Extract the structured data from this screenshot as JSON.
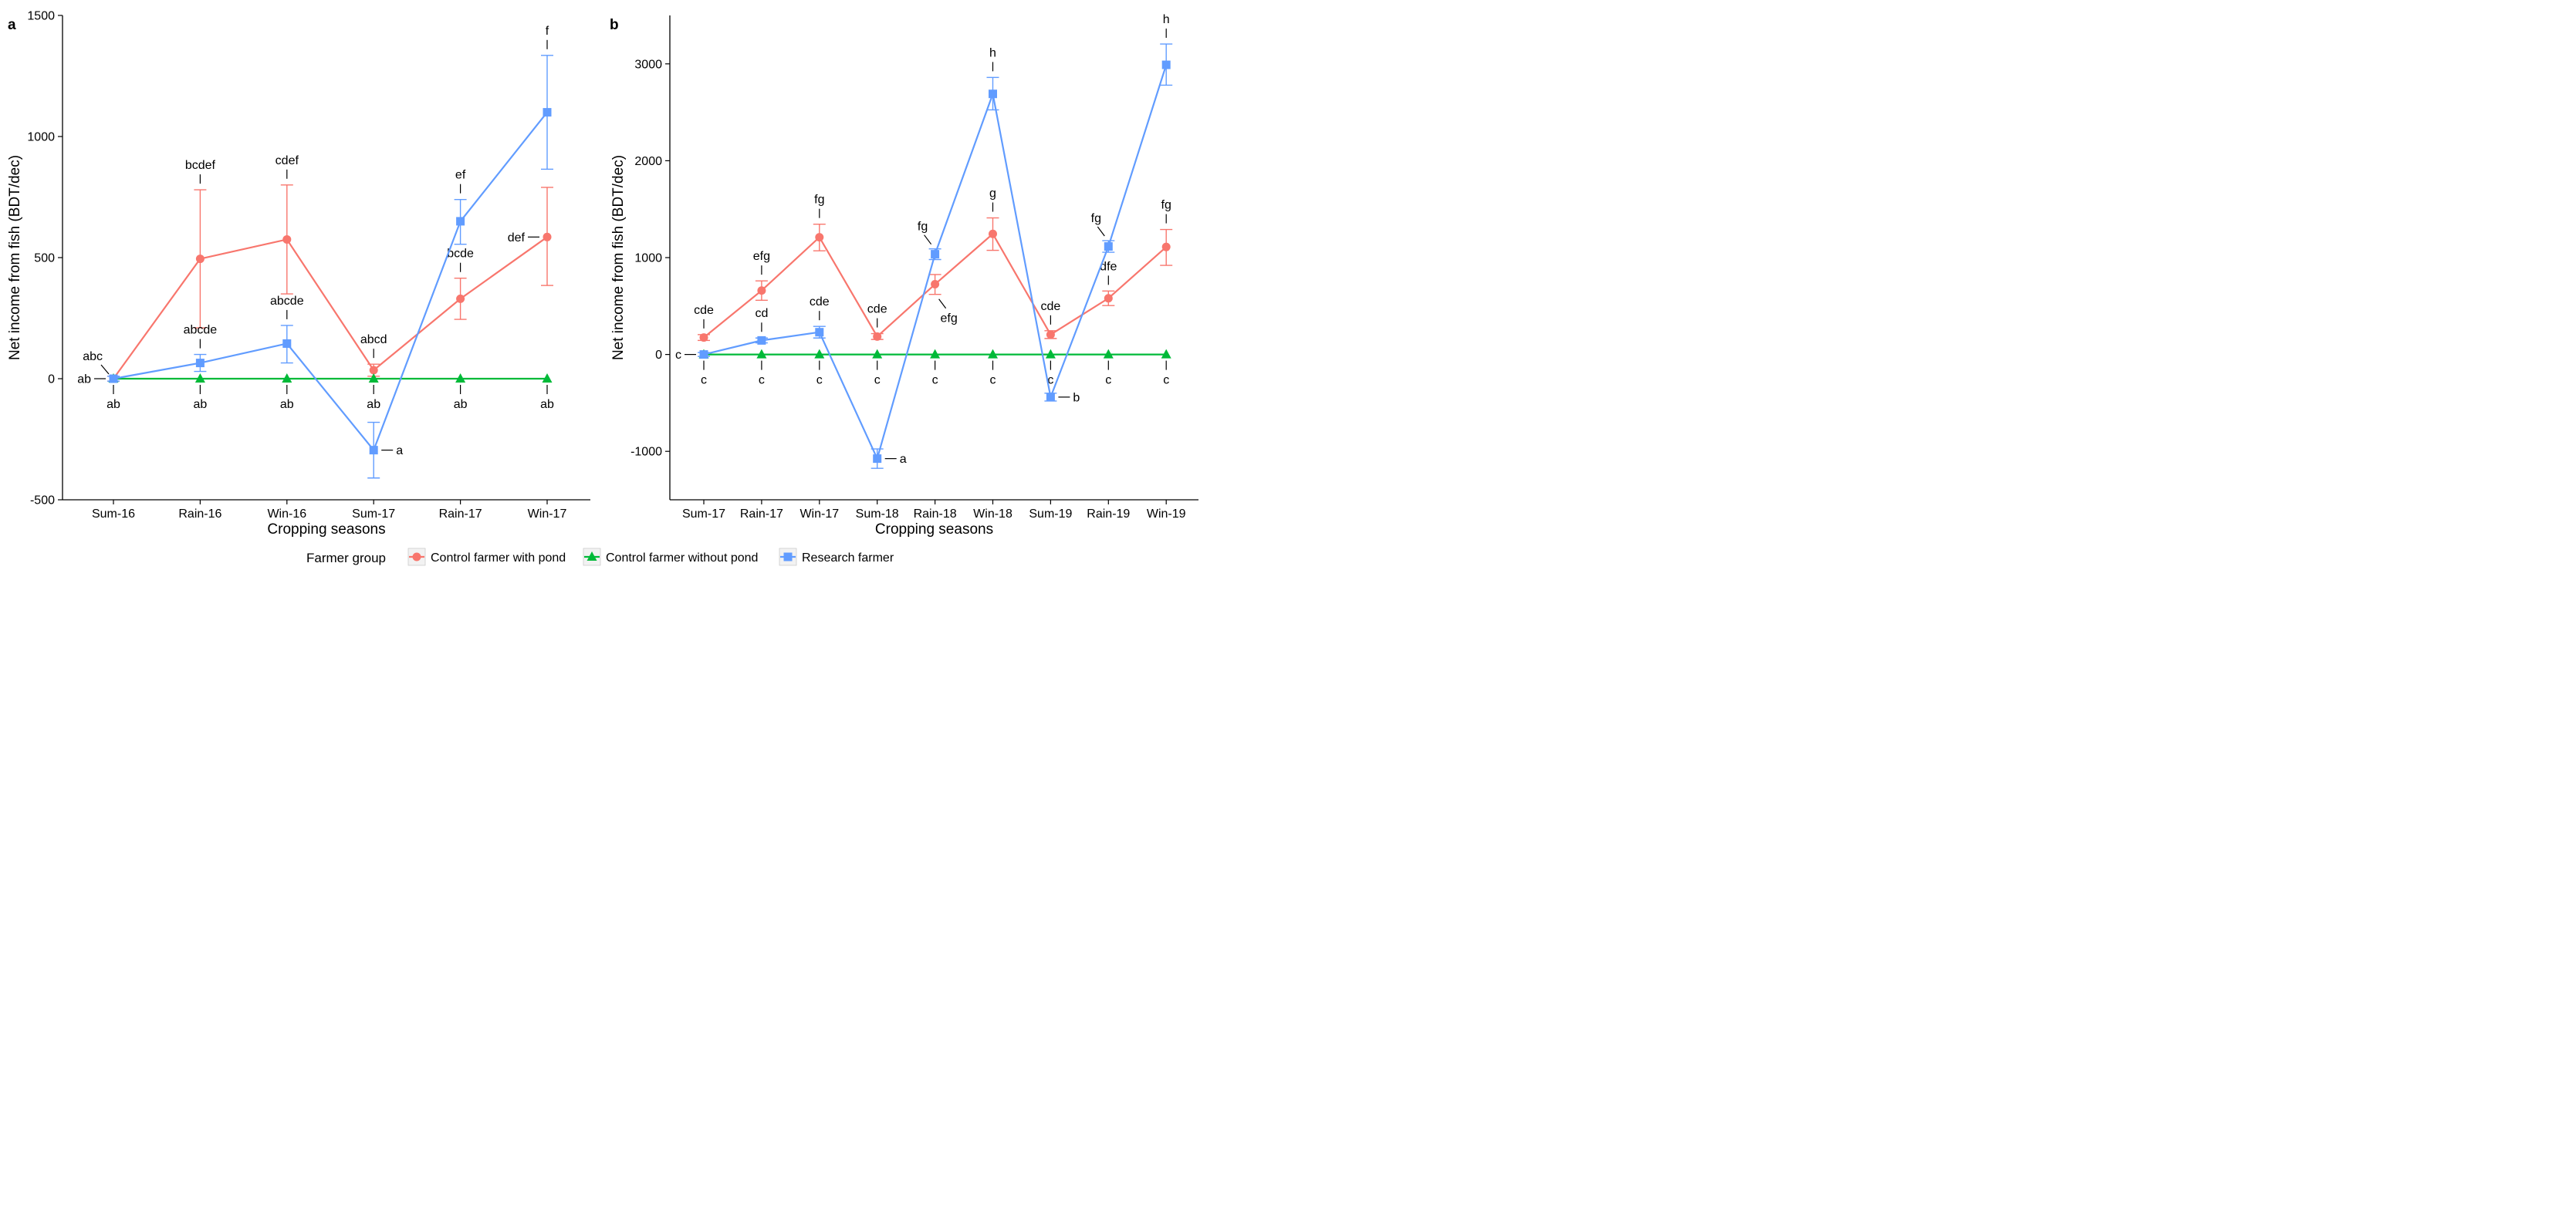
{
  "chart_data": [
    {
      "panel_label": "a",
      "type": "line",
      "xlabel": "Cropping seasons",
      "ylabel": "Net income from fish (BDT/dec)",
      "categories": [
        "Sum-16",
        "Rain-16",
        "Win-16",
        "Sum-17",
        "Rain-17",
        "Win-17"
      ],
      "ylim": [
        -500,
        1500
      ],
      "yticks": [
        -500,
        0,
        500,
        1000,
        1500
      ],
      "grid": false,
      "series": [
        {
          "name": "Control farmer with pond",
          "values": [
            0,
            495,
            575,
            35,
            330,
            585
          ],
          "err_low": [
            -10,
            210,
            350,
            10,
            245,
            385
          ],
          "err_high": [
            10,
            780,
            800,
            60,
            415,
            790
          ],
          "letters": [
            "abc",
            "bcdef",
            "cdef",
            "abcd",
            "bcde",
            "def"
          ]
        },
        {
          "name": "Control farmer without pond",
          "values": [
            0,
            0,
            0,
            0,
            0,
            0
          ],
          "letters": [
            "ab",
            "ab",
            "ab",
            "ab",
            "ab",
            "ab"
          ]
        },
        {
          "name": "Research farmer",
          "values": [
            0,
            65,
            145,
            -295,
            650,
            1100
          ],
          "err_low": [
            -10,
            30,
            65,
            -410,
            555,
            865
          ],
          "err_high": [
            10,
            100,
            220,
            -180,
            740,
            1335
          ],
          "letters": [
            "ab",
            "abcde",
            "abcde",
            "a",
            "ef",
            "f"
          ]
        }
      ]
    },
    {
      "panel_label": "b",
      "type": "line",
      "xlabel": "Cropping seasons",
      "ylabel": "Net income from fish (BDT/dec)",
      "categories": [
        "Sum-17",
        "Rain-17",
        "Win-17",
        "Sum-18",
        "Rain-18",
        "Win-18",
        "Sum-19",
        "Rain-19",
        "Win-19"
      ],
      "ylim": [
        -1500,
        3500
      ],
      "yticks": [
        -1000,
        0,
        1000,
        2000,
        3000
      ],
      "grid": false,
      "series": [
        {
          "name": "Control farmer with pond",
          "values": [
            175,
            660,
            1210,
            185,
            725,
            1245,
            205,
            580,
            1110
          ],
          "err_low": [
            145,
            560,
            1070,
            155,
            620,
            1075,
            165,
            505,
            920
          ],
          "err_high": [
            205,
            760,
            1345,
            215,
            825,
            1410,
            245,
            655,
            1290
          ],
          "letters": [
            "cde",
            "efg",
            "fg",
            "cde",
            "efg",
            "g",
            "cde",
            "dfe",
            "fg"
          ]
        },
        {
          "name": "Control farmer without pond",
          "values": [
            0,
            0,
            0,
            0,
            0,
            0,
            0,
            0,
            0
          ],
          "letters": [
            "c",
            "c",
            "c",
            "c",
            "c",
            "c",
            "c",
            "c",
            "c"
          ]
        },
        {
          "name": "Research farmer",
          "values": [
            0,
            145,
            230,
            -1075,
            1035,
            2690,
            -440,
            1115,
            2990
          ],
          "err_low": [
            -20,
            120,
            170,
            -1175,
            980,
            2525,
            -480,
            1055,
            2780
          ],
          "err_high": [
            20,
            170,
            290,
            -975,
            1090,
            2860,
            -400,
            1175,
            3205
          ],
          "letters": [
            "c",
            "cd",
            "cde",
            "a",
            "fg",
            "h",
            "b",
            "fg",
            "h"
          ]
        }
      ]
    }
  ],
  "legend": {
    "title": "Farmer group",
    "placement": "bottom",
    "items": [
      {
        "label": "Control farmer with pond",
        "color": "#F8766D",
        "marker": "circle"
      },
      {
        "label": "Control farmer without pond",
        "color": "#00BA38",
        "marker": "triangle"
      },
      {
        "label": "Research farmer",
        "color": "#619CFF",
        "marker": "square"
      }
    ]
  },
  "colors": {
    "control_with_pond": "#F8766D",
    "control_without_pond": "#00BA38",
    "research": "#619CFF",
    "axis": "#000000"
  }
}
